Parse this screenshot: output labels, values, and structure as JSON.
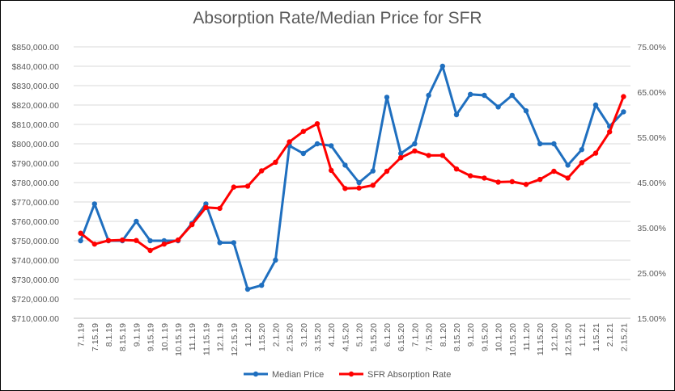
{
  "chart_data": {
    "type": "line",
    "title": "Absorption Rate/Median Price for SFR",
    "categories": [
      "7.1.19",
      "7.15.19",
      "8.1.19",
      "8.15.19",
      "9.1.19",
      "9.15.19",
      "10.1.19",
      "10.15.19",
      "11.1.19",
      "11.15.19",
      "12.1.19",
      "12.15.19",
      "1.1.20",
      "1.15.20",
      "2.1.20",
      "2.15.20",
      "3.1.20",
      "3.15.20",
      "4.1.20",
      "4.15.20",
      "5.1.20",
      "5.15.20",
      "6.1.20",
      "6.15.20",
      "7.1.20",
      "7.15.20",
      "8.1.20",
      "8.15.20",
      "9.1.20",
      "9.15.20",
      "10.1.20",
      "10.15.20",
      "11.1.20",
      "11.15.20",
      "12.1.20",
      "12.15.20",
      "1.1.21",
      "1.15.21",
      "2.1.21",
      "2.15.21"
    ],
    "series": [
      {
        "name": "Median Price",
        "axis": "left",
        "color": "#1F6FBF",
        "values": [
          750000,
          769000,
          750000,
          750000,
          760000,
          750000,
          750000,
          750000,
          759000,
          769000,
          749000,
          749000,
          725000,
          727000,
          740000,
          799000,
          795000,
          800000,
          799000,
          789000,
          780000,
          786000,
          824000,
          795000,
          800000,
          825000,
          840000,
          815000,
          825500,
          825000,
          819000,
          825000,
          817000,
          800000,
          800000,
          789000,
          797000,
          820000,
          809000,
          816500
        ]
      },
      {
        "name": "SFR Absorption Rate",
        "axis": "right",
        "color": "#FF0000",
        "values": [
          0.338,
          0.314,
          0.322,
          0.323,
          0.322,
          0.3,
          0.314,
          0.323,
          0.357,
          0.395,
          0.393,
          0.44,
          0.442,
          0.476,
          0.495,
          0.54,
          0.563,
          0.58,
          0.477,
          0.437,
          0.438,
          0.444,
          0.475,
          0.505,
          0.52,
          0.51,
          0.51,
          0.48,
          0.465,
          0.46,
          0.451,
          0.452,
          0.446,
          0.457,
          0.475,
          0.46,
          0.494,
          0.515,
          0.562,
          0.64
        ]
      }
    ],
    "y_left": {
      "min": 710000,
      "max": 850000,
      "step": 10000,
      "tick_labels": [
        "$710,000.00",
        "$720,000.00",
        "$730,000.00",
        "$740,000.00",
        "$750,000.00",
        "$760,000.00",
        "$770,000.00",
        "$780,000.00",
        "$790,000.00",
        "$800,000.00",
        "$810,000.00",
        "$820,000.00",
        "$830,000.00",
        "$840,000.00",
        "$850,000.00"
      ]
    },
    "y_right": {
      "min": 0.15,
      "max": 0.75,
      "step": 0.1,
      "tick_labels": [
        "15.00%",
        "25.00%",
        "35.00%",
        "45.00%",
        "55.00%",
        "65.00%",
        "75.00%"
      ]
    },
    "grid": true,
    "legend_position": "bottom"
  }
}
